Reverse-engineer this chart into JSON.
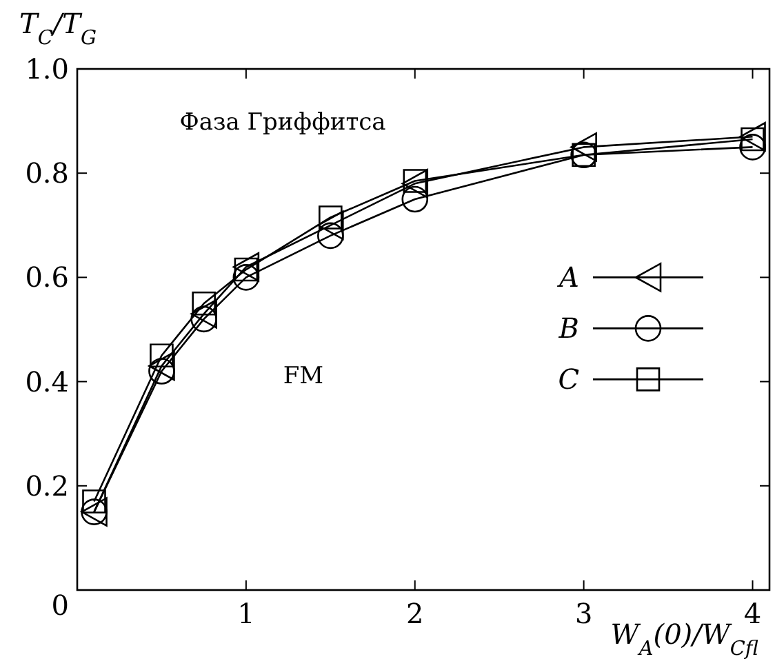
{
  "chart_data": {
    "type": "line",
    "xlabel": "W$_{A}$(0)/W$_{Cfl}$",
    "ylabel": "T$_{C}$/T$_{G}$",
    "x": [
      0.1,
      0.5,
      0.75,
      1,
      1.5,
      2,
      3,
      4
    ],
    "xlim": [
      0,
      4.1
    ],
    "xticks": [
      1,
      2,
      3,
      4
    ],
    "ylim": [
      0,
      1
    ],
    "yticks": [
      {
        "value": 0,
        "label": "0"
      },
      0.2,
      0.4,
      0.6,
      0.8,
      {
        "value": 1,
        "label": "1.0"
      }
    ],
    "series": [
      {
        "name": "A",
        "color": "#000000",
        "marker": "triangle",
        "values": [
          0.15,
          0.43,
          0.53,
          0.62,
          0.7,
          0.78,
          0.85,
          0.87
        ]
      },
      {
        "name": "B",
        "color": "#000000",
        "marker": "circle",
        "values": [
          0.15,
          0.42,
          0.52,
          0.6,
          0.68,
          0.75,
          0.835,
          0.85
        ]
      },
      {
        "name": "C",
        "color": "#000000",
        "marker": "square",
        "values": [
          0.17,
          0.45,
          0.55,
          0.615,
          0.715,
          0.785,
          0.835,
          0.865
        ]
      }
    ],
    "annotations": [
      "Фаза Гриффитса",
      "FM"
    ],
    "legend": "right",
    "grid": false,
    "line_style": "solid"
  }
}
